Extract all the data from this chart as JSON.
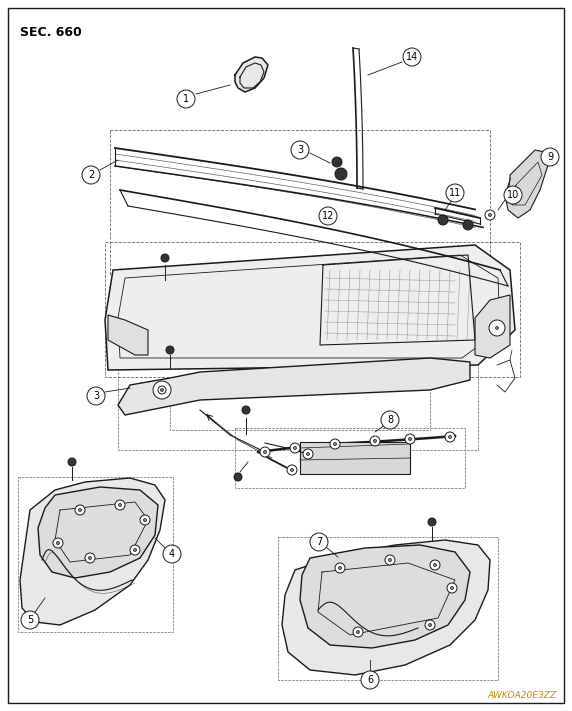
{
  "title": "SEC. 660",
  "watermark": "AWKOA20E3ZZ",
  "bg_color": "#ffffff",
  "border_color": "#000000",
  "text_color": "#000000",
  "title_fontsize": 9,
  "watermark_fontsize": 6.5,
  "fig_width": 5.72,
  "fig_height": 7.11,
  "dpi": 100,
  "line_color": "#1a1a1a",
  "dash_color": "#666666",
  "circle_r": 0.016
}
